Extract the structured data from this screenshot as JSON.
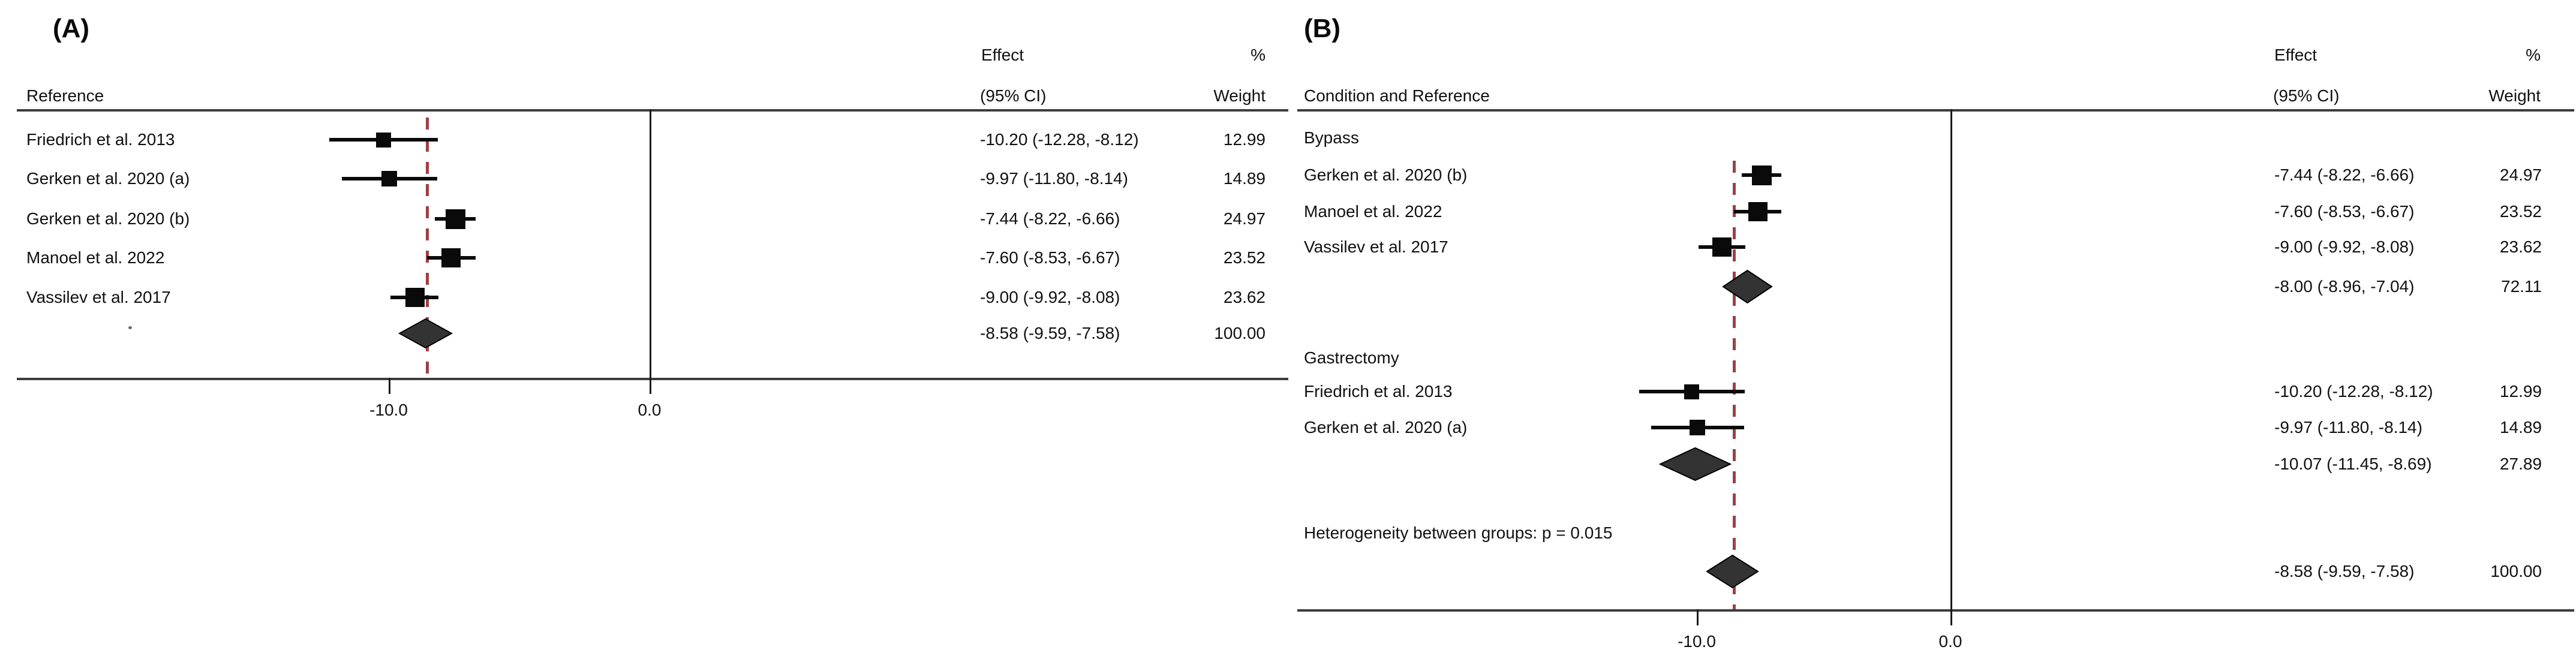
{
  "colors": {
    "dashed_overall_line": "#9c4046",
    "marker": "#0a0a0a",
    "diamond_fill": "#333333",
    "diamond_stroke": "#000000",
    "rule_line": "#3d3d3d",
    "null_line": "#1a1a1a",
    "text": "#111111"
  },
  "chart_data": [
    {
      "type": "forest",
      "panel": "A",
      "title": "(A)",
      "columns": {
        "reference": "Reference",
        "effect_line1": "Effect",
        "effect_line2": "(95% CI)",
        "weight_line1": "%",
        "weight_line2": "Weight"
      },
      "x_ticks": [
        {
          "value": -10,
          "label": "-10.0"
        },
        {
          "value": 0,
          "label": "0.0"
        }
      ],
      "null_line_value": 0,
      "overall_dashed_value": -8.58,
      "rows": [
        {
          "kind": "study",
          "label": "Friedrich et al. 2013",
          "effect": -10.2,
          "ci_low": -12.28,
          "ci_high": -8.12,
          "effect_text": "-10.20 (-12.28, -8.12)",
          "weight": 12.99,
          "weight_text": "12.99"
        },
        {
          "kind": "study",
          "label": "Gerken et al. 2020 (a)",
          "effect": -9.97,
          "ci_low": -11.8,
          "ci_high": -8.14,
          "effect_text": "-9.97 (-11.80, -8.14)",
          "weight": 14.89,
          "weight_text": "14.89"
        },
        {
          "kind": "study",
          "label": "Gerken et al. 2020 (b)",
          "effect": -7.44,
          "ci_low": -8.22,
          "ci_high": -6.66,
          "effect_text": "-7.44 (-8.22, -6.66)",
          "weight": 24.97,
          "weight_text": "24.97"
        },
        {
          "kind": "study",
          "label": "Manoel et al. 2022",
          "effect": -7.6,
          "ci_low": -8.53,
          "ci_high": -6.67,
          "effect_text": "-7.60 (-8.53, -6.67)",
          "weight": 23.52,
          "weight_text": "23.52"
        },
        {
          "kind": "study",
          "label": "Vassilev et al. 2017",
          "effect": -9.0,
          "ci_low": -9.92,
          "ci_high": -8.08,
          "effect_text": "-9.00 (-9.92, -8.08)",
          "weight": 23.62,
          "weight_text": "23.62"
        },
        {
          "kind": "overall",
          "label": "",
          "effect": -8.58,
          "ci_low": -9.59,
          "ci_high": -7.58,
          "effect_text": "-8.58 (-9.59, -7.58)",
          "weight": 100.0,
          "weight_text": "100.00"
        }
      ]
    },
    {
      "type": "forest",
      "panel": "B",
      "title": "(B)",
      "columns": {
        "reference": "Condition and Reference",
        "effect_line1": "Effect",
        "effect_line2": "(95% CI)",
        "weight_line1": "%",
        "weight_line2": "Weight"
      },
      "x_ticks": [
        {
          "value": -10,
          "label": "-10.0"
        },
        {
          "value": 0,
          "label": "0.0"
        }
      ],
      "null_line_value": 0,
      "overall_dashed_value": -8.58,
      "rows": [
        {
          "kind": "group",
          "label": "Bypass"
        },
        {
          "kind": "study",
          "label": "Gerken et al. 2020 (b)",
          "effect": -7.44,
          "ci_low": -8.22,
          "ci_high": -6.66,
          "effect_text": "-7.44 (-8.22, -6.66)",
          "weight": 24.97,
          "weight_text": "24.97"
        },
        {
          "kind": "study",
          "label": "Manoel et al. 2022",
          "effect": -7.6,
          "ci_low": -8.53,
          "ci_high": -6.67,
          "effect_text": "-7.60 (-8.53, -6.67)",
          "weight": 23.52,
          "weight_text": "23.52"
        },
        {
          "kind": "study",
          "label": "Vassilev et al. 2017",
          "effect": -9.0,
          "ci_low": -9.92,
          "ci_high": -8.08,
          "effect_text": "-9.00 (-9.92, -8.08)",
          "weight": 23.62,
          "weight_text": "23.62"
        },
        {
          "kind": "subtotal",
          "label": "",
          "effect": -8.0,
          "ci_low": -8.96,
          "ci_high": -7.04,
          "effect_text": "-8.00 (-8.96, -7.04)",
          "weight": 72.11,
          "weight_text": "72.11"
        },
        {
          "kind": "group",
          "label": "Gastrectomy"
        },
        {
          "kind": "study",
          "label": "Friedrich et al. 2013",
          "effect": -10.2,
          "ci_low": -12.28,
          "ci_high": -8.12,
          "effect_text": "-10.20 (-12.28, -8.12)",
          "weight": 12.99,
          "weight_text": "12.99"
        },
        {
          "kind": "study",
          "label": "Gerken et al. 2020 (a)",
          "effect": -9.97,
          "ci_low": -11.8,
          "ci_high": -8.14,
          "effect_text": "-9.97 (-11.80, -8.14)",
          "weight": 14.89,
          "weight_text": "14.89"
        },
        {
          "kind": "subtotal",
          "label": "",
          "effect": -10.07,
          "ci_low": -11.45,
          "ci_high": -8.69,
          "effect_text": "-10.07 (-11.45, -8.69)",
          "weight": 27.89,
          "weight_text": "27.89"
        },
        {
          "kind": "note",
          "label": "Heterogeneity between groups: p = 0.015"
        },
        {
          "kind": "overall",
          "label": "",
          "effect": -8.58,
          "ci_low": -9.59,
          "ci_high": -7.58,
          "effect_text": "-8.58 (-9.59, -7.58)",
          "weight": 100.0,
          "weight_text": "100.00"
        }
      ]
    }
  ]
}
